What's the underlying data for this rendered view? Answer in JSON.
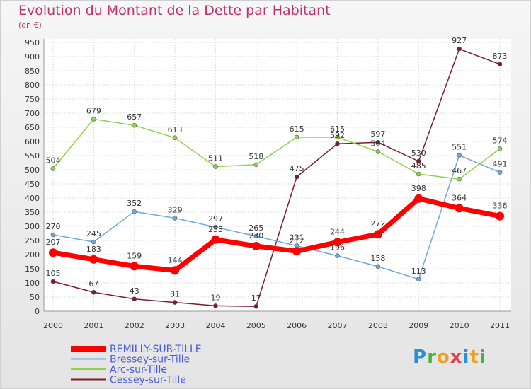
{
  "chart_data": {
    "type": "line",
    "title": "Evolution du Montant de la Dette par Habitant",
    "subtitle": "(en €)",
    "xlabel": "",
    "ylabel": "",
    "ylim": [
      0,
      950
    ],
    "yticks": [
      0,
      50,
      100,
      150,
      200,
      250,
      300,
      350,
      400,
      450,
      500,
      550,
      600,
      650,
      700,
      750,
      800,
      850,
      900,
      950
    ],
    "x": [
      "2000",
      "2001",
      "2002",
      "2003",
      "2004",
      "2005",
      "2006",
      "2007",
      "2008",
      "2009",
      "2010",
      "2011"
    ],
    "grid": true,
    "legend": "bottom-left",
    "series": [
      {
        "name": "REMILLY-SUR-TILLE",
        "color": "#ff0000",
        "values": [
          207,
          183,
          159,
          144,
          253,
          230,
          212,
          244,
          272,
          398,
          364,
          336
        ]
      },
      {
        "name": "Bressey-sur-Tille",
        "color": "#6fa8dc",
        "values": [
          270,
          245,
          352,
          329,
          297,
          265,
          231,
          196,
          158,
          113,
          551,
          491
        ]
      },
      {
        "name": "Arc-sur-Tille",
        "color": "#8fd14f",
        "values": [
          504,
          679,
          657,
          613,
          511,
          518,
          615,
          615,
          564,
          485,
          467,
          574
        ]
      },
      {
        "name": "Cessey-sur-Tille",
        "color": "#7b1e2a",
        "values": [
          105,
          67,
          43,
          31,
          19,
          17,
          475,
          592,
          597,
          530,
          927,
          873
        ]
      }
    ]
  },
  "branding": {
    "logo_letters": [
      "P",
      "r",
      "o",
      "x",
      "i",
      "t",
      "i"
    ],
    "logo_colors": [
      "#2e8fd6",
      "#4cb04a",
      "#f0a020",
      "#e04050",
      "#2e8fd6",
      "#f0a020",
      "#4cb04a"
    ]
  }
}
